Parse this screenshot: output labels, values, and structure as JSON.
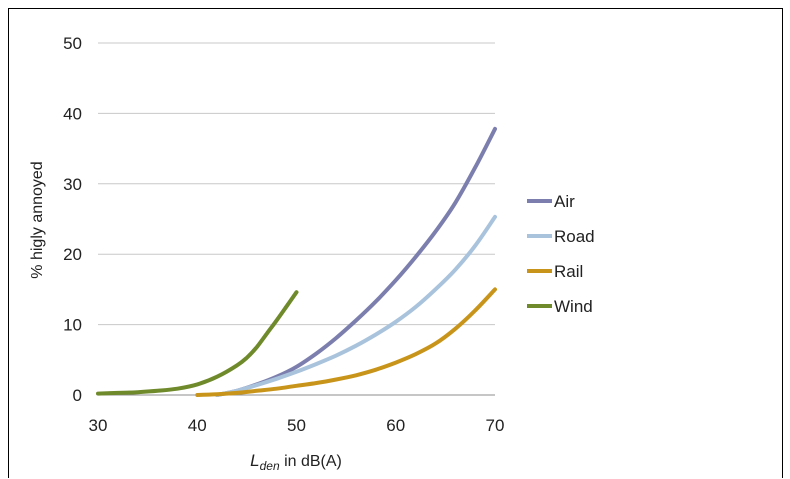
{
  "chart_data": {
    "type": "line",
    "title": "",
    "xlabel_main": "L",
    "xlabel_sub": "den",
    "xlabel_rest": " in dB(A)",
    "ylabel": "% higly annoyed",
    "xlim": [
      30,
      70
    ],
    "ylim": [
      0,
      50
    ],
    "x_ticks": [
      "30",
      "40",
      "50",
      "60",
      "70"
    ],
    "y_ticks": [
      "0",
      "10",
      "20",
      "30",
      "40",
      "50"
    ],
    "grid": true,
    "legend_position": "right",
    "series": [
      {
        "name": "Air",
        "color": "#7c7fad",
        "x": [
          42,
          44,
          46,
          48,
          50,
          52,
          54,
          56,
          58,
          60,
          62,
          64,
          66,
          68,
          70
        ],
        "y": [
          0,
          0.6,
          1.5,
          2.6,
          4.0,
          5.9,
          8.1,
          10.6,
          13.3,
          16.3,
          19.6,
          23.2,
          27.3,
          32.3,
          37.8
        ]
      },
      {
        "name": "Road",
        "color": "#a9c3dd",
        "x": [
          42,
          44,
          46,
          48,
          50,
          52,
          54,
          56,
          58,
          60,
          62,
          64,
          66,
          68,
          70
        ],
        "y": [
          0,
          0.6,
          1.4,
          2.3,
          3.3,
          4.4,
          5.6,
          7.0,
          8.6,
          10.4,
          12.5,
          15.0,
          17.8,
          21.2,
          25.3
        ]
      },
      {
        "name": "Rail",
        "color": "#c8951a",
        "x": [
          40,
          42,
          44,
          46,
          48,
          50,
          52,
          54,
          56,
          58,
          60,
          62,
          64,
          66,
          68,
          70
        ],
        "y": [
          0,
          0.1,
          0.3,
          0.6,
          0.9,
          1.3,
          1.7,
          2.2,
          2.8,
          3.6,
          4.6,
          5.8,
          7.3,
          9.4,
          12.0,
          15.0
        ]
      },
      {
        "name": "Wind",
        "color": "#6f8a2b",
        "x": [
          30,
          32,
          34,
          36,
          38,
          40,
          42,
          44,
          45,
          46,
          47,
          48,
          49,
          50
        ],
        "y": [
          0.2,
          0.3,
          0.4,
          0.6,
          0.9,
          1.5,
          2.6,
          4.2,
          5.3,
          6.8,
          8.7,
          10.6,
          12.6,
          14.6
        ]
      }
    ]
  }
}
